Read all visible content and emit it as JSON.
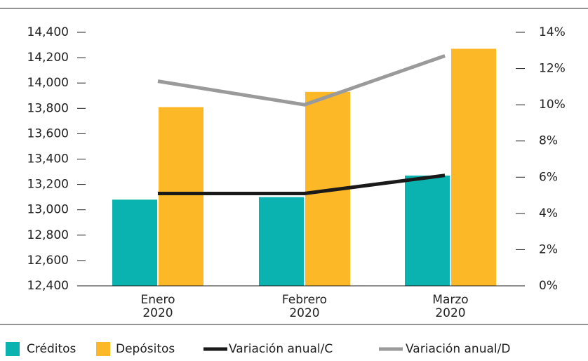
{
  "chart_data": {
    "type": "bar_line",
    "categories": [
      "Enero 2020",
      "Febrero 2020",
      "Marzo 2020"
    ],
    "series": [
      {
        "name": "Créditos",
        "color": "#0bb3b0",
        "type": "bar",
        "values": [
          13080,
          13100,
          13270
        ]
      },
      {
        "name": "Depósitos",
        "color": "#fdb827",
        "type": "bar",
        "values": [
          13810,
          13930,
          14270
        ]
      },
      {
        "name": "Variación anual/C",
        "color": "#1a1a1a",
        "type": "line",
        "axis": "y2",
        "values": [
          5.1,
          5.1,
          6.1
        ]
      },
      {
        "name": "Variación anual/D",
        "color": "#9a9a9a",
        "type": "line",
        "axis": "y2",
        "values": [
          11.3,
          10.0,
          12.7
        ]
      }
    ],
    "ylim": [
      12400,
      14400
    ],
    "yticks": [
      {
        "value": 12400,
        "label": "12,400"
      },
      {
        "value": 12600,
        "label": "12,600"
      },
      {
        "value": 12800,
        "label": "12,800"
      },
      {
        "value": 13000,
        "label": "13,000"
      },
      {
        "value": 13200,
        "label": "13,200"
      },
      {
        "value": 13400,
        "label": "13,400"
      },
      {
        "value": 13600,
        "label": "13,600"
      },
      {
        "value": 13800,
        "label": "13,800"
      },
      {
        "value": 14000,
        "label": "14,000"
      },
      {
        "value": 14200,
        "label": "14,200"
      },
      {
        "value": 14400,
        "label": "14,400"
      }
    ],
    "y2lim": [
      0,
      14
    ],
    "y2ticks": [
      {
        "value": 0,
        "label": "0%"
      },
      {
        "value": 2,
        "label": "2%"
      },
      {
        "value": 4,
        "label": "4%"
      },
      {
        "value": 6,
        "label": "6%"
      },
      {
        "value": 8,
        "label": "8%"
      },
      {
        "value": 10,
        "label": "10%"
      },
      {
        "value": 12,
        "label": "12%"
      },
      {
        "value": 14,
        "label": "14%"
      }
    ]
  }
}
